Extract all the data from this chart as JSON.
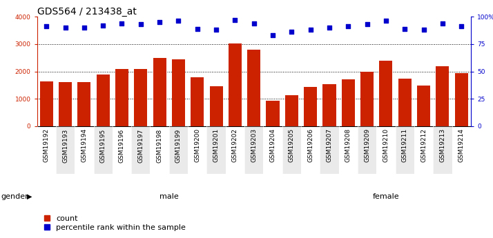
{
  "title": "GDS564 / 213438_at",
  "samples": [
    "GSM19192",
    "GSM19193",
    "GSM19194",
    "GSM19195",
    "GSM19196",
    "GSM19197",
    "GSM19198",
    "GSM19199",
    "GSM19200",
    "GSM19201",
    "GSM19202",
    "GSM19203",
    "GSM19204",
    "GSM19205",
    "GSM19206",
    "GSM19207",
    "GSM19208",
    "GSM19209",
    "GSM19210",
    "GSM19211",
    "GSM19212",
    "GSM19213",
    "GSM19214"
  ],
  "counts": [
    1630,
    1610,
    1610,
    1880,
    2100,
    2100,
    2500,
    2440,
    1780,
    1450,
    3020,
    2800,
    940,
    1130,
    1440,
    1540,
    1720,
    1980,
    2400,
    1730,
    1490,
    2200,
    1940
  ],
  "percentile": [
    91,
    90,
    90,
    92,
    94,
    93,
    95,
    96,
    89,
    88,
    97,
    94,
    83,
    86,
    88,
    90,
    91,
    93,
    96,
    89,
    88,
    94,
    91
  ],
  "male_count": 14,
  "female_count": 9,
  "bar_color": "#cc2200",
  "dot_color": "#0000cc",
  "ylim_left": [
    0,
    4000
  ],
  "ylim_right": [
    0,
    100
  ],
  "yticks_left": [
    0,
    1000,
    2000,
    3000,
    4000
  ],
  "yticks_right": [
    0,
    25,
    50,
    75,
    100
  ],
  "male_bg": "#aaffaa",
  "female_bg": "#44cc44",
  "xtick_bg": "#cccccc",
  "plot_bg": "#ffffff",
  "title_fontsize": 10,
  "tick_fontsize": 6.5,
  "label_fontsize": 8,
  "gender_label": "gender",
  "male_label": "male",
  "female_label": "female",
  "legend_count": "count",
  "legend_pct": "percentile rank within the sample"
}
